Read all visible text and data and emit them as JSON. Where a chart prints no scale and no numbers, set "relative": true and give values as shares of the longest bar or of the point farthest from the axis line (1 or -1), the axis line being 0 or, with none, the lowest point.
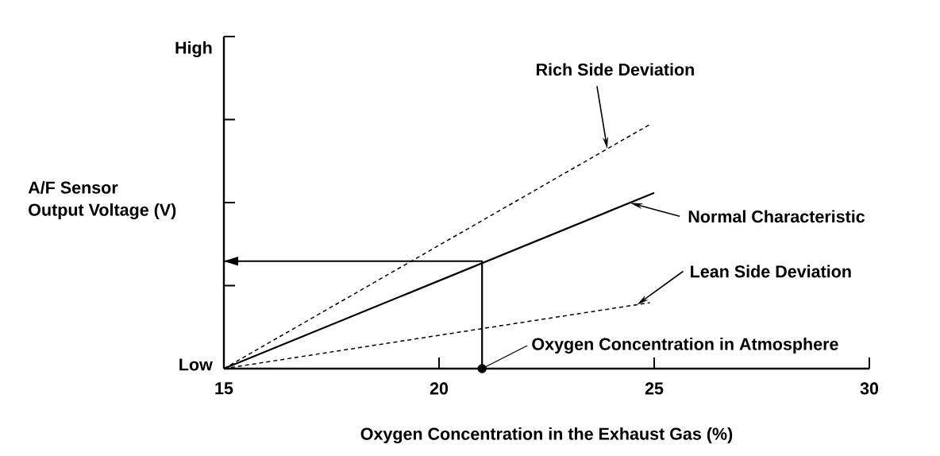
{
  "chart_data": {
    "type": "line",
    "relative": true,
    "xlabel": "Oxygen Concentration in the Exhaust Gas (%)",
    "ylabel": "A/F Sensor\nOutput Voltage (V)",
    "annotations": [
      "Low",
      "High",
      {
        "text": "Oxygen Concentration in Atmosphere",
        "x": 21,
        "y": 0
      }
    ],
    "xlim": [
      15,
      30
    ],
    "xticks": [
      15,
      20,
      25,
      30
    ],
    "series": [
      {
        "name": "Rich Side Deviation",
        "color": "#000000",
        "x": [
          15,
          24.9
        ],
        "values": [
          0,
          1
        ],
        "line_style": "dashed"
      },
      {
        "name": "Normal Characteristic",
        "color": "#000000",
        "x": [
          15,
          25
        ],
        "values": [
          0,
          0.72
        ],
        "line_style": "solid"
      },
      {
        "name": "Lean Side Deviation",
        "color": "#000000",
        "x": [
          15,
          24.9
        ],
        "values": [
          0,
          0.27
        ],
        "line_style": "dashed"
      },
      {
        "color": "#000000",
        "x": [
          21,
          21,
          15
        ],
        "values": [
          0,
          0.44,
          0.44
        ],
        "line_style": "solid"
      },
      {
        "type": "scatter",
        "color": "#000000",
        "x": [
          21
        ],
        "values": [
          0
        ],
        "marker": "circle"
      }
    ]
  }
}
